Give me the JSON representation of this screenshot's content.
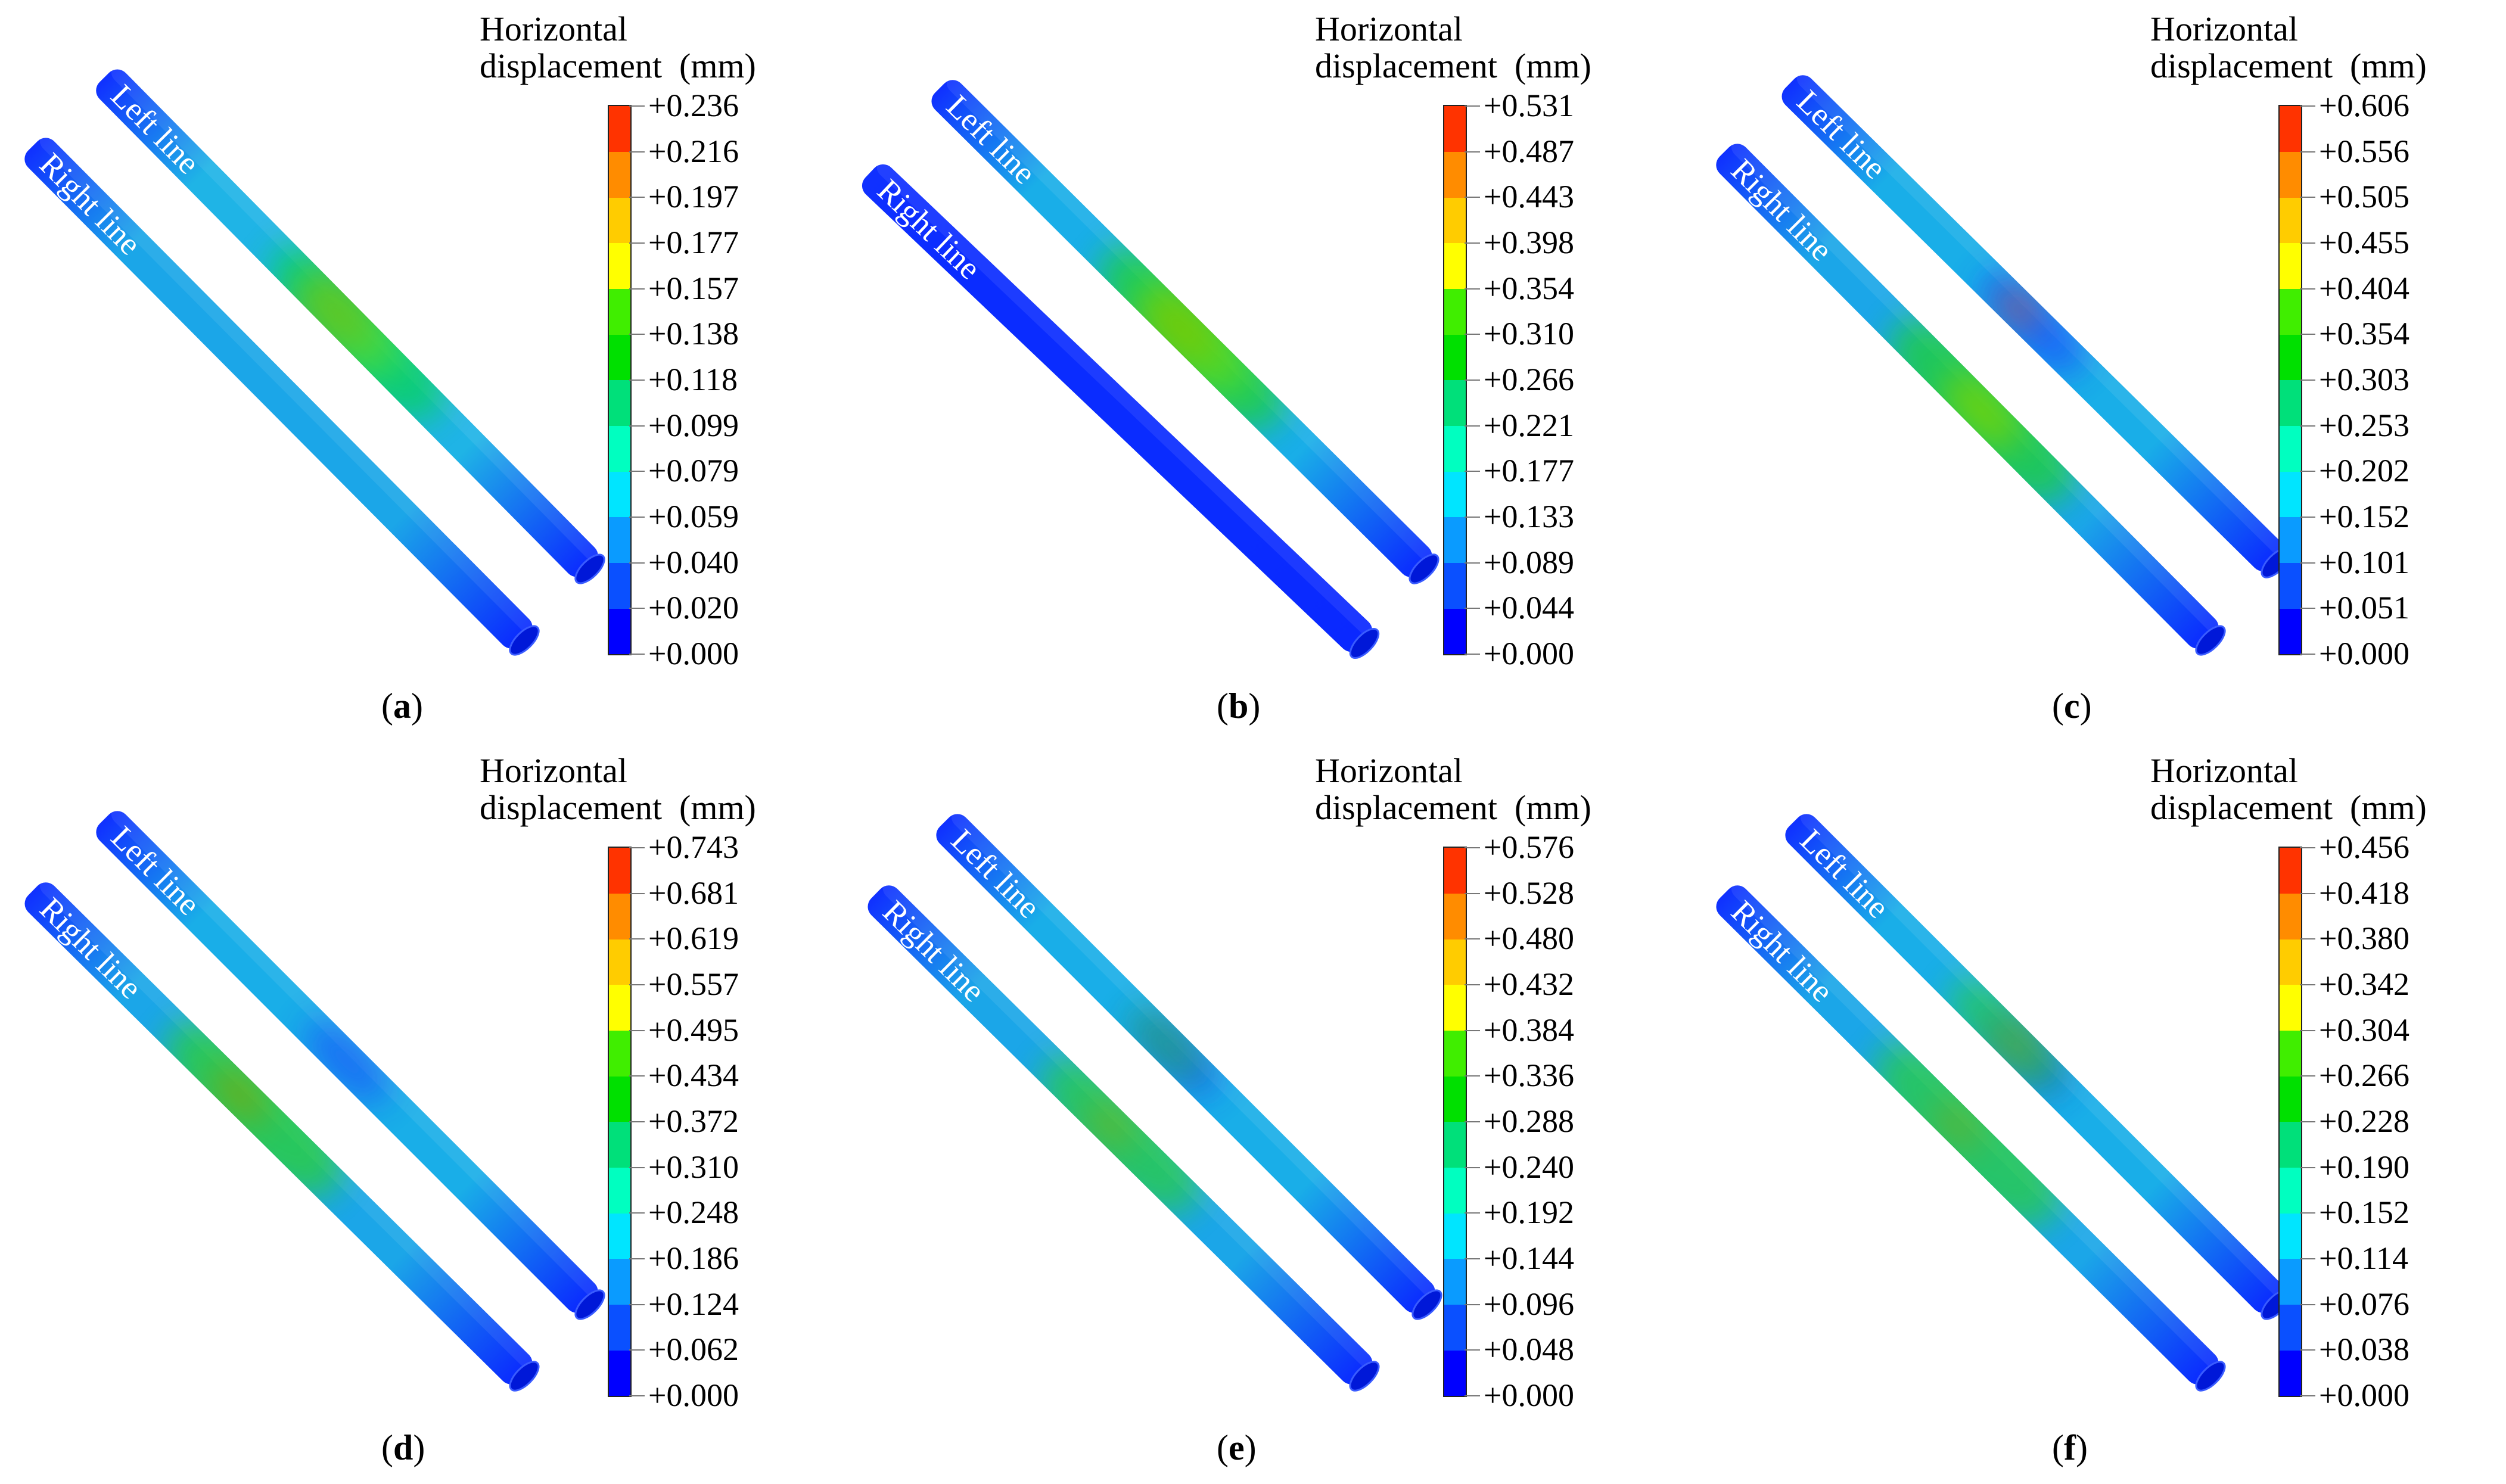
{
  "legend": {
    "title_line1": "Horizontal",
    "title_line2": "displacement  (mm)",
    "colors": [
      "#0000ff",
      "#0a50ff",
      "#0a9bff",
      "#00e5ff",
      "#00ffc0",
      "#00e07a",
      "#00e000",
      "#40ee00",
      "#ffff00",
      "#ffcc00",
      "#ff8c00",
      "#ff3300"
    ]
  },
  "pipe_labels": {
    "left": "Left line",
    "right": "Right line"
  },
  "panels": [
    {
      "id": "a",
      "caption": {
        "open": "(",
        "letter": "a",
        "close": ")"
      },
      "ticks": [
        "+0.236",
        "+0.216",
        "+0.197",
        "+0.177",
        "+0.157",
        "+0.138",
        "+0.118",
        "+0.099",
        "+0.079",
        "+0.059",
        "+0.040",
        "+0.020",
        "+0.000"
      ],
      "variant": 0
    },
    {
      "id": "b",
      "caption": {
        "open": "(",
        "letter": "b",
        "close": ")"
      },
      "ticks": [
        "+0.531",
        "+0.487",
        "+0.443",
        "+0.398",
        "+0.354",
        "+0.310",
        "+0.266",
        "+0.221",
        "+0.177",
        "+0.133",
        "+0.089",
        "+0.044",
        "+0.000"
      ],
      "variant": 1
    },
    {
      "id": "c",
      "caption": {
        "open": "(",
        "letter": "c",
        "close": ")"
      },
      "ticks": [
        "+0.606",
        "+0.556",
        "+0.505",
        "+0.455",
        "+0.404",
        "+0.354",
        "+0.303",
        "+0.253",
        "+0.202",
        "+0.152",
        "+0.101",
        "+0.051",
        "+0.000"
      ],
      "variant": 2
    },
    {
      "id": "d",
      "caption": {
        "open": "(",
        "letter": "d",
        "close": ")"
      },
      "ticks": [
        "+0.743",
        "+0.681",
        "+0.619",
        "+0.557",
        "+0.495",
        "+0.434",
        "+0.372",
        "+0.310",
        "+0.248",
        "+0.186",
        "+0.124",
        "+0.062",
        "+0.000"
      ],
      "variant": 3
    },
    {
      "id": "e",
      "caption": {
        "open": "(",
        "letter": "e",
        "close": ")"
      },
      "ticks": [
        "+0.576",
        "+0.528",
        "+0.480",
        "+0.432",
        "+0.384",
        "+0.336",
        "+0.288",
        "+0.240",
        "+0.192",
        "+0.144",
        "+0.096",
        "+0.048",
        "+0.000"
      ],
      "variant": 4
    },
    {
      "id": "f",
      "caption": {
        "open": "(",
        "letter": "f",
        "close": ")"
      },
      "ticks": [
        "+0.456",
        "+0.418",
        "+0.380",
        "+0.342",
        "+0.304",
        "+0.266",
        "+0.228",
        "+0.190",
        "+0.152",
        "+0.114",
        "+0.076",
        "+0.038",
        "+0.000"
      ],
      "variant": 5
    }
  ]
}
